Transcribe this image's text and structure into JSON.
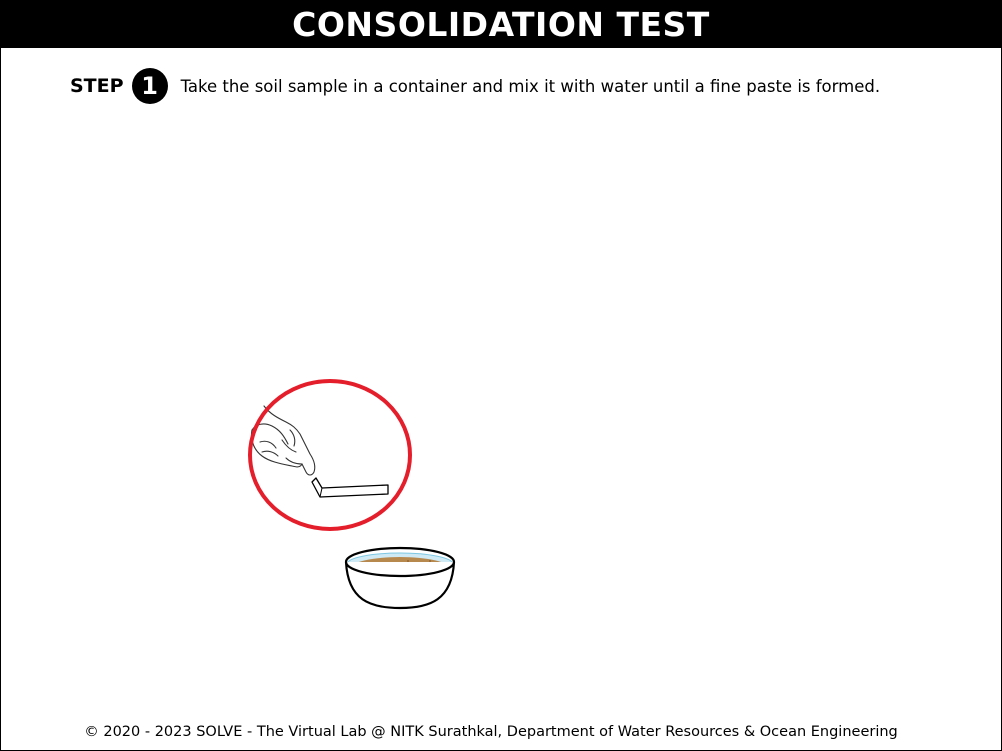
{
  "header": {
    "title": "CONSOLIDATION TEST"
  },
  "step": {
    "label": "STEP",
    "number": "1",
    "instruction": "Take the soil sample in a container and mix it with water until a fine paste is formed."
  },
  "scene": {
    "highlight_color": "#e41e2b",
    "soil_color": "#b8894f",
    "water_color": "#7ec8e3"
  },
  "footer": {
    "copyright": "© 2020 - 2023 SOLVE - The Virtual Lab @ NITK Surathkal, Department of Water Resources & Ocean Engineering"
  }
}
